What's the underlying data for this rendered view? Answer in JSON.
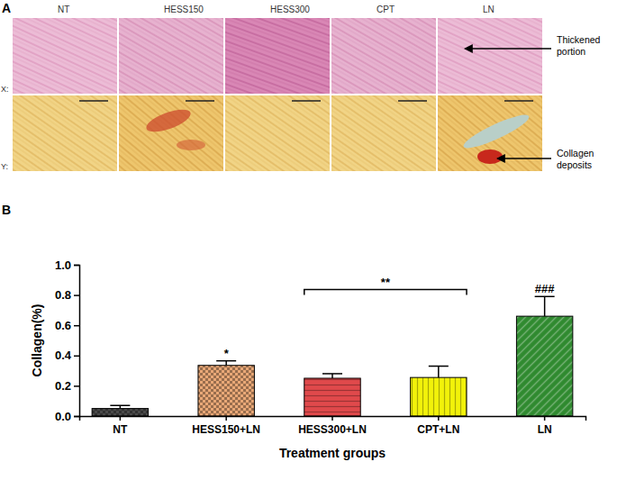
{
  "panel_labels": [
    "A",
    "B"
  ],
  "panel_a": {
    "columns": [
      "NT",
      "HESS150",
      "HESS300",
      "CPT",
      "LN"
    ],
    "rows": [
      "X:",
      "Y:"
    ],
    "annotations": [
      [
        "Thickened",
        "portion"
      ],
      [
        "Collagen",
        "deposits"
      ]
    ]
  },
  "chart_data": {
    "type": "bar",
    "categories": [
      "NT",
      "HESS150+LN",
      "HESS300+LN",
      "CPT+LN",
      "LN"
    ],
    "values": [
      0.05,
      0.335,
      0.25,
      0.255,
      0.66
    ],
    "errors": [
      0.02,
      0.03,
      0.03,
      0.075,
      0.13
    ],
    "colors": [
      "#4a4a4a",
      "#e9a877",
      "#e0494b",
      "#f2f20a",
      "#2f8a2f"
    ],
    "x_label": "Treatment groups",
    "y_label": "Collagen(%)",
    "ylim": [
      0,
      1.0
    ],
    "yticks": [
      {
        "value": 0,
        "label": "0.0"
      },
      {
        "value": 0.2,
        "label": "0.2"
      },
      {
        "value": 0.4,
        "label": "0.4"
      },
      {
        "value": 0.6,
        "label": "0.6"
      },
      {
        "value": 0.8,
        "label": "0.8"
      },
      {
        "value": 1.0,
        "label": "1.0"
      }
    ],
    "annotations": [
      {
        "text": "*",
        "categories": [
          "HESS150+LN"
        ]
      },
      {
        "text": "**",
        "categories": [
          "HESS300+LN",
          "CPT+LN"
        ]
      },
      {
        "text": "###",
        "categories": [
          "LN"
        ]
      }
    ]
  }
}
